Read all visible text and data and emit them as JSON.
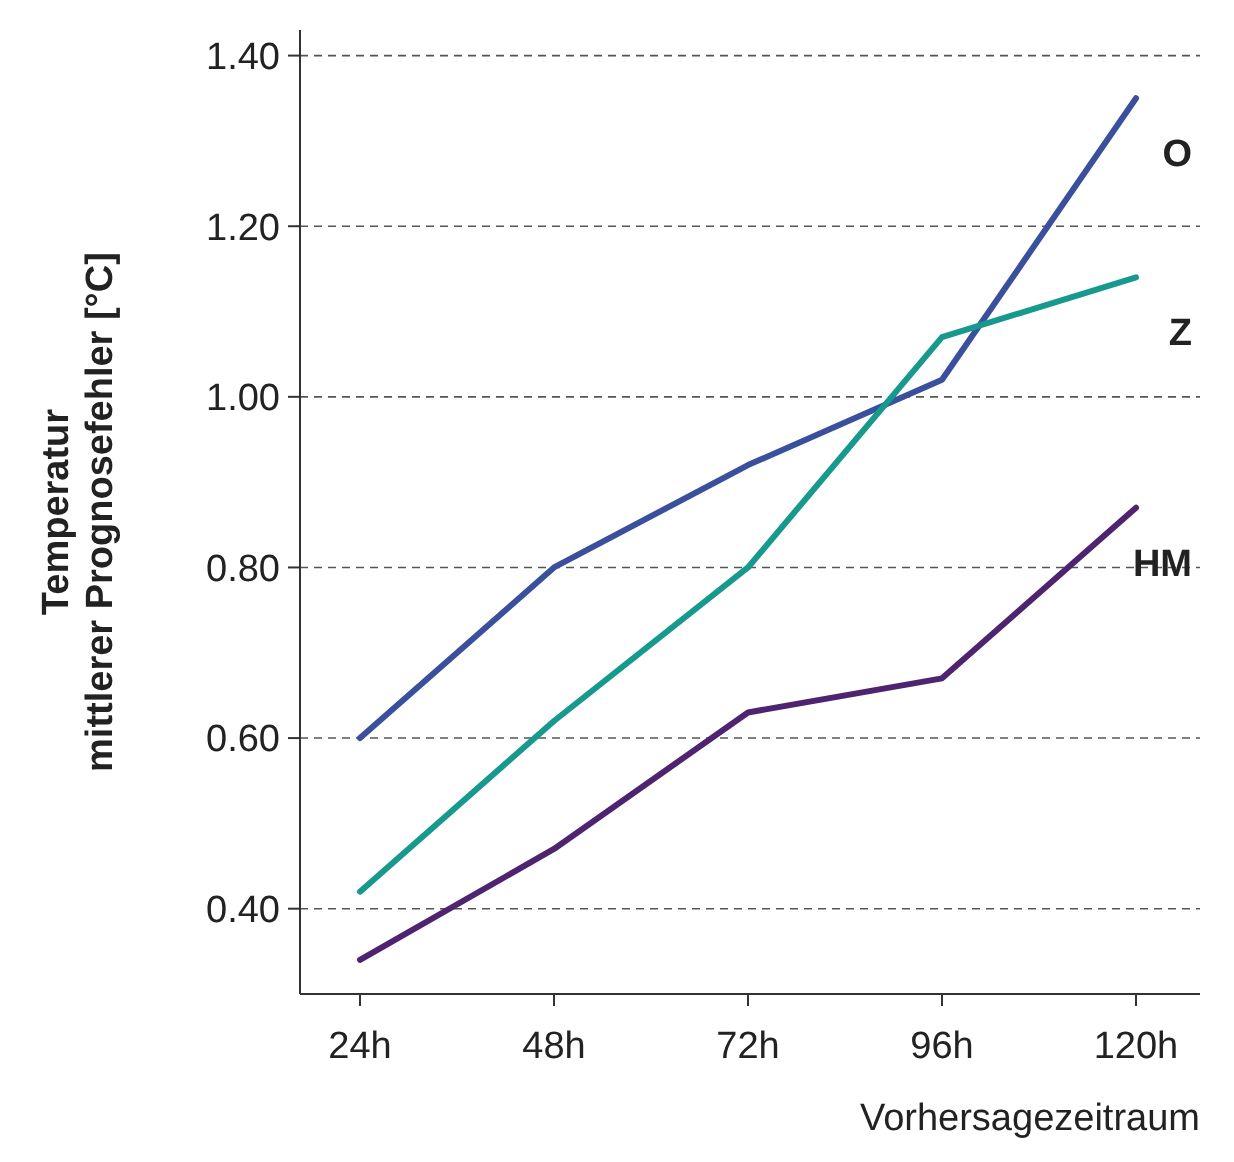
{
  "chart_data": {
    "type": "line",
    "xlabel": "Vorhersagezeitraum",
    "ylabel": "Temperatur\nmittlerer Prognosefehler [°C]",
    "categories": [
      "24h",
      "48h",
      "72h",
      "96h",
      "120h"
    ],
    "series": [
      {
        "name": "O",
        "color": "#3b509c",
        "values": [
          0.6,
          0.8,
          0.92,
          1.02,
          1.35
        ]
      },
      {
        "name": "Z",
        "color": "#17998e",
        "values": [
          0.42,
          0.62,
          0.8,
          1.07,
          1.14
        ]
      },
      {
        "name": "HM",
        "color": "#4e2470",
        "values": [
          0.34,
          0.47,
          0.63,
          0.67,
          0.87
        ]
      }
    ],
    "ylim": [
      0.3,
      1.43
    ],
    "yticks": [
      {
        "value": 0.4,
        "label": "0.40"
      },
      {
        "value": 0.6,
        "label": "0.60"
      },
      {
        "value": 0.8,
        "label": "0.80"
      },
      {
        "value": 1.0,
        "label": "1.00"
      },
      {
        "value": 1.2,
        "label": "1.20"
      },
      {
        "value": 1.4,
        "label": "1.40"
      }
    ],
    "grid": "y",
    "marker": "none",
    "line_style": "solid"
  }
}
